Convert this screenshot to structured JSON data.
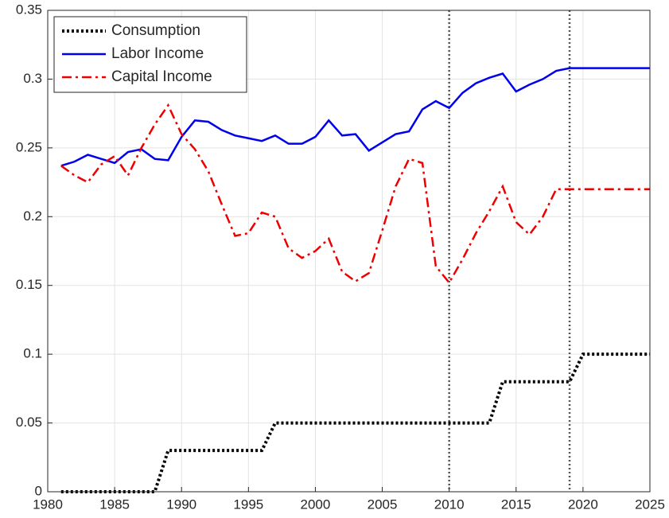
{
  "chart_data": {
    "type": "line",
    "x": [
      1981,
      1982,
      1983,
      1984,
      1985,
      1986,
      1987,
      1988,
      1989,
      1990,
      1991,
      1992,
      1993,
      1994,
      1995,
      1996,
      1997,
      1998,
      1999,
      2000,
      2001,
      2002,
      2003,
      2004,
      2005,
      2006,
      2007,
      2008,
      2009,
      2010,
      2011,
      2012,
      2013,
      2014,
      2015,
      2016,
      2017,
      2018,
      2019,
      2020,
      2021,
      2022,
      2023,
      2024,
      2025
    ],
    "series": [
      {
        "name": "Consumption",
        "color": "#000000",
        "style": "dotted",
        "values": [
          0,
          0,
          0,
          0,
          0,
          0,
          0,
          0,
          0.03,
          0.03,
          0.03,
          0.03,
          0.03,
          0.03,
          0.03,
          0.03,
          0.05,
          0.05,
          0.05,
          0.05,
          0.05,
          0.05,
          0.05,
          0.05,
          0.05,
          0.05,
          0.05,
          0.05,
          0.05,
          0.05,
          0.05,
          0.05,
          0.05,
          0.08,
          0.08,
          0.08,
          0.08,
          0.08,
          0.08,
          0.1,
          0.1,
          0.1,
          0.1,
          0.1,
          0.1
        ]
      },
      {
        "name": "Labor Income",
        "color": "#0000ee",
        "style": "solid",
        "values": [
          0.237,
          0.24,
          0.245,
          0.242,
          0.239,
          0.247,
          0.249,
          0.242,
          0.241,
          0.258,
          0.27,
          0.269,
          0.263,
          0.259,
          0.257,
          0.255,
          0.259,
          0.253,
          0.253,
          0.258,
          0.27,
          0.259,
          0.26,
          0.248,
          0.254,
          0.26,
          0.262,
          0.278,
          0.284,
          0.279,
          0.29,
          0.297,
          0.301,
          0.304,
          0.291,
          0.296,
          0.3,
          0.306,
          0.308,
          0.308,
          0.308,
          0.308,
          0.308,
          0.308,
          0.308
        ]
      },
      {
        "name": "Capital Income",
        "color": "#ee0000",
        "style": "dashdot",
        "values": [
          0.237,
          0.23,
          0.225,
          0.238,
          0.244,
          0.23,
          0.25,
          0.267,
          0.281,
          0.26,
          0.249,
          0.233,
          0.209,
          0.186,
          0.188,
          0.203,
          0.2,
          0.177,
          0.17,
          0.175,
          0.184,
          0.16,
          0.153,
          0.159,
          0.19,
          0.222,
          0.242,
          0.239,
          0.164,
          0.152,
          0.169,
          0.188,
          0.204,
          0.222,
          0.196,
          0.187,
          0.2,
          0.22,
          0.22,
          0.22,
          0.22,
          0.22,
          0.22,
          0.22,
          0.22
        ]
      }
    ],
    "vlines": [
      2010,
      2019
    ],
    "xlim": [
      1980,
      2025
    ],
    "xticks": [
      1980,
      1985,
      1990,
      1995,
      2000,
      2005,
      2010,
      2015,
      2020,
      2025
    ],
    "ylim": [
      0,
      0.35
    ],
    "yticks": [
      0,
      0.05,
      0.1,
      0.15,
      0.2,
      0.25,
      0.3,
      0.35
    ],
    "grid": true,
    "legend": "top-left"
  }
}
